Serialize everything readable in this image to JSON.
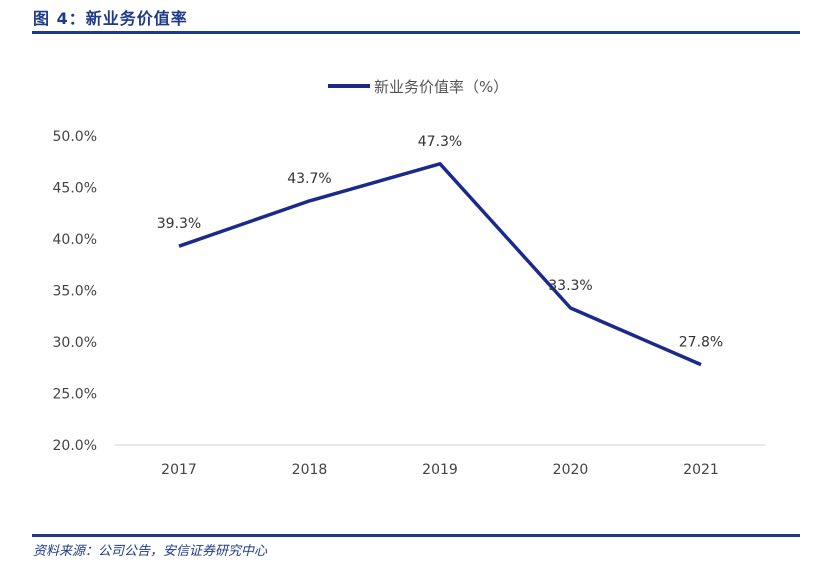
{
  "figure_title": "图 4：新业务价值率",
  "source": "资料来源：公司公告，安信证券研究中心",
  "chart_data": {
    "type": "line",
    "categories": [
      "2017",
      "2018",
      "2019",
      "2020",
      "2021"
    ],
    "series": [
      {
        "name": "新业务价值率（%）",
        "values": [
          39.3,
          43.7,
          47.3,
          33.3,
          27.8
        ],
        "color": "#1a2a8c"
      }
    ],
    "data_labels": [
      "39.3%",
      "43.7%",
      "47.3%",
      "33.3%",
      "27.8%"
    ],
    "ylim": [
      20,
      50
    ],
    "yticks": [
      "20.0%",
      "25.0%",
      "30.0%",
      "35.0%",
      "40.0%",
      "45.0%",
      "50.0%"
    ],
    "legend_position": "top-center",
    "grid": false
  }
}
